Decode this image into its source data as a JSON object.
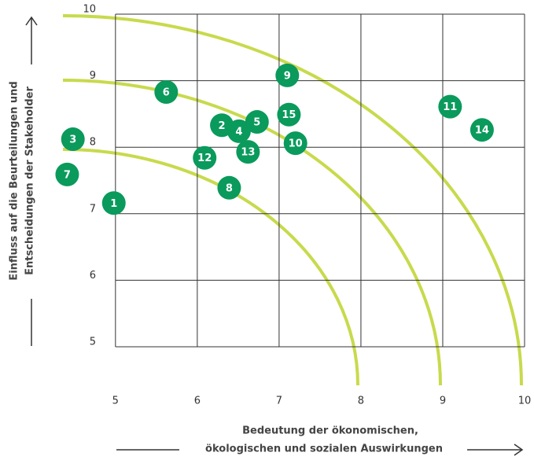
{
  "chart_data": {
    "type": "scatter",
    "x": [
      4.98,
      6.3,
      4.48,
      6.51,
      6.73,
      5.62,
      4.41,
      6.39,
      7.1,
      7.2,
      9.09,
      6.09,
      6.62,
      9.48,
      7.12
    ],
    "y": [
      7.16,
      8.33,
      8.12,
      8.24,
      8.38,
      8.83,
      7.59,
      7.39,
      9.08,
      8.06,
      8.61,
      7.84,
      7.93,
      8.26,
      8.49
    ],
    "labels": [
      "1",
      "2",
      "3",
      "4",
      "5",
      "6",
      "7",
      "8",
      "9",
      "10",
      "11",
      "12",
      "13",
      "14",
      "15"
    ],
    "color": "#0a9a5c",
    "xlim": [
      4.3,
      10
    ],
    "ylim": [
      5,
      10
    ],
    "xticks": [
      5,
      6,
      7,
      8,
      9,
      10
    ],
    "yticks": [
      5,
      6,
      7,
      8,
      9,
      10
    ],
    "grid": true,
    "xlabel": [
      "Bedeutung der ökonomischen,",
      "ökologischen und sozialen Auswirkungen"
    ],
    "ylabel": [
      "Einfluss auf die Beurteilungen und",
      "Entscheidungen der Stakeholder"
    ]
  }
}
